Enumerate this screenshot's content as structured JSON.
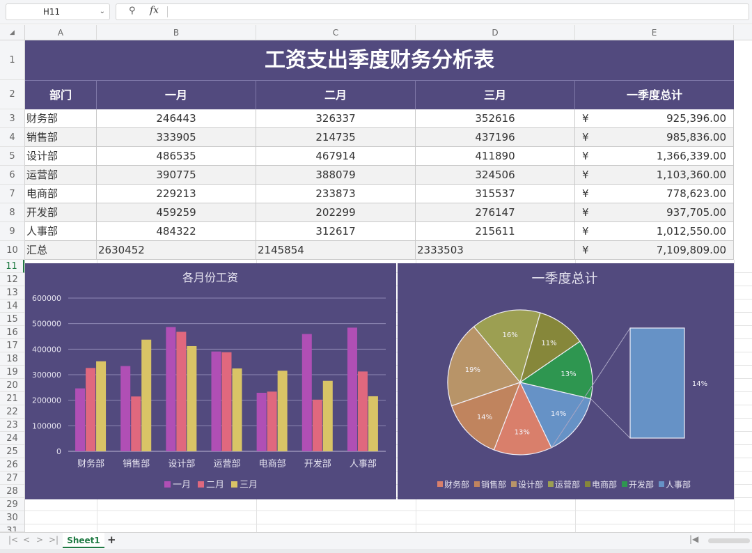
{
  "formula_bar": {
    "cell_ref": "H11",
    "fx_label": "fx"
  },
  "columns": [
    "A",
    "B",
    "C",
    "D",
    "E"
  ],
  "rows": [
    "1",
    "2",
    "3",
    "4",
    "5",
    "6",
    "7",
    "8",
    "9",
    "10",
    "11",
    "12",
    "13",
    "14",
    "15",
    "16",
    "17",
    "18",
    "19",
    "20",
    "21",
    "22",
    "23",
    "24",
    "25",
    "26",
    "27",
    "28",
    "29",
    "30",
    "31"
  ],
  "table": {
    "title": "工资支出季度财务分析表",
    "headers": [
      "部门",
      "一月",
      "二月",
      "三月",
      "一季度总计"
    ],
    "currency": "¥",
    "rows": [
      {
        "dept": "财务部",
        "m1": "246443",
        "m2": "326337",
        "m3": "352616",
        "total": "925,396.00"
      },
      {
        "dept": "销售部",
        "m1": "333905",
        "m2": "214735",
        "m3": "437196",
        "total": "985,836.00"
      },
      {
        "dept": "设计部",
        "m1": "486535",
        "m2": "467914",
        "m3": "411890",
        "total": "1,366,339.00"
      },
      {
        "dept": "运营部",
        "m1": "390775",
        "m2": "388079",
        "m3": "324506",
        "total": "1,103,360.00"
      },
      {
        "dept": "电商部",
        "m1": "229213",
        "m2": "233873",
        "m3": "315537",
        "total": "778,623.00"
      },
      {
        "dept": "开发部",
        "m1": "459259",
        "m2": "202299",
        "m3": "276147",
        "total": "937,705.00"
      },
      {
        "dept": "人事部",
        "m1": "484322",
        "m2": "312617",
        "m3": "215611",
        "total": "1,012,550.00"
      }
    ],
    "summary": {
      "dept": "汇总",
      "m1": "2630452",
      "m2": "2145854",
      "m3": "2333503",
      "total": "7,109,809.00"
    }
  },
  "chart_data": [
    {
      "type": "bar",
      "title": "各月份工资",
      "categories": [
        "财务部",
        "销售部",
        "设计部",
        "运营部",
        "电商部",
        "开发部",
        "人事部"
      ],
      "series": [
        {
          "name": "一月",
          "color": "#b04fb5",
          "values": [
            246443,
            333905,
            486535,
            390775,
            229213,
            459259,
            484322
          ]
        },
        {
          "name": "二月",
          "color": "#e0687e",
          "values": [
            326337,
            214735,
            467914,
            388079,
            233873,
            202299,
            312617
          ]
        },
        {
          "name": "三月",
          "color": "#d9c466",
          "values": [
            352616,
            437196,
            411890,
            324506,
            315537,
            276147,
            215611
          ]
        }
      ],
      "yticks": [
        "0",
        "100000",
        "200000",
        "300000",
        "400000",
        "500000",
        "600000"
      ],
      "ylim": [
        0,
        600000
      ],
      "grid": true,
      "legend": "bottom"
    },
    {
      "type": "pie",
      "title": "一季度总计",
      "categories": [
        "财务部",
        "销售部",
        "设计部",
        "运营部",
        "电商部",
        "开发部",
        "人事部"
      ],
      "values": [
        925396,
        985836,
        1366339,
        1103360,
        778623,
        937705,
        1012550
      ],
      "colors": [
        "#d97f6b",
        "#c0845e",
        "#b89468",
        "#9c9f52",
        "#86873a",
        "#2e9650",
        "#6692c6"
      ],
      "labels": [
        "13%",
        "14%",
        "19%",
        "16%",
        "11%",
        "13%",
        "14%"
      ],
      "breakout_label": "14%",
      "legend": "bottom"
    }
  ],
  "tabs": {
    "sheet_name": "Sheet1",
    "add": "+"
  },
  "nav": {
    "first": "|<",
    "prev": "<",
    "next": ">",
    "last": ">|"
  }
}
